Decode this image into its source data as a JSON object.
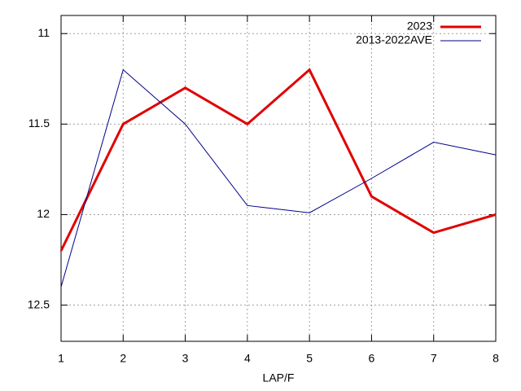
{
  "chart_data": {
    "type": "line",
    "x_label": "LAP/F",
    "x": [
      1,
      2,
      3,
      4,
      5,
      6,
      7,
      8
    ],
    "series": [
      {
        "name": "2023",
        "color": "#e00000",
        "values": [
          12.2,
          11.5,
          11.3,
          11.5,
          11.2,
          11.9,
          12.1,
          12.0
        ]
      },
      {
        "name": "2013-2022AVE",
        "color": "#00008b",
        "values": [
          12.4,
          11.2,
          11.5,
          11.95,
          11.99,
          11.8,
          11.6,
          11.67
        ]
      }
    ],
    "xlim": [
      1,
      8
    ],
    "xticks": [
      1,
      2,
      3,
      4,
      5,
      6,
      7,
      8
    ],
    "ylim": [
      12.7,
      10.9
    ],
    "yticks": [
      11,
      11.5,
      12,
      12.5
    ],
    "grid": true,
    "legend": "top-right"
  }
}
